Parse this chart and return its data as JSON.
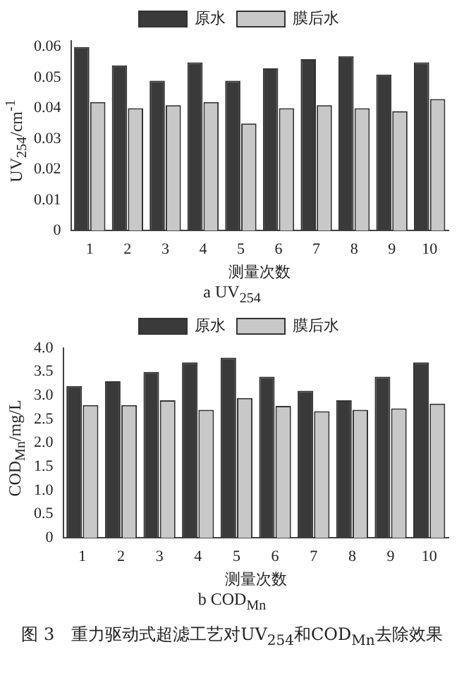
{
  "chart_data": [
    {
      "type": "bar",
      "title": "a UV$_{254}$",
      "xlabel": "测量次数",
      "ylabel": "UV$_{254}$/cm$^{-1}$",
      "categories": [
        "1",
        "2",
        "3",
        "4",
        "5",
        "6",
        "7",
        "8",
        "9",
        "10"
      ],
      "series": [
        {
          "name": "原水",
          "color": "#3a3a3a",
          "values": [
            0.06,
            0.054,
            0.049,
            0.055,
            0.049,
            0.053,
            0.056,
            0.057,
            0.051,
            0.055
          ]
        },
        {
          "name": "膜后水",
          "color": "#c8c8c8",
          "values": [
            0.042,
            0.04,
            0.041,
            0.042,
            0.035,
            0.04,
            0.041,
            0.04,
            0.039,
            0.043
          ]
        }
      ],
      "ylim": [
        0,
        0.062
      ],
      "yticks": [
        {
          "value": 0,
          "label": "0"
        },
        0.01,
        0.02,
        0.03,
        0.04,
        0.05,
        0.06
      ],
      "grid": false,
      "legend": "top"
    },
    {
      "type": "bar",
      "title": "b COD$_{Mn}$",
      "xlabel": "测量次数",
      "ylabel": "COD$_{Mn}$/mg/L",
      "categories": [
        "1",
        "2",
        "3",
        "4",
        "5",
        "6",
        "7",
        "8",
        "9",
        "10"
      ],
      "series": [
        {
          "name": "原水",
          "color": "#3a3a3a",
          "values": [
            3.2,
            3.3,
            3.5,
            3.7,
            3.8,
            3.4,
            3.1,
            2.9,
            3.4,
            3.7
          ]
        },
        {
          "name": "膜后水",
          "color": "#c8c8c8",
          "values": [
            2.8,
            2.8,
            2.9,
            2.7,
            2.95,
            2.78,
            2.67,
            2.7,
            2.73,
            2.83
          ]
        }
      ],
      "ylim": [
        0,
        4
      ],
      "yticks": [
        {
          "value": 0,
          "label": "0"
        },
        {
          "value": 0.5,
          "label": "0.5"
        },
        {
          "value": 1,
          "label": "1.0"
        },
        {
          "value": 1.5,
          "label": "1.5"
        },
        {
          "value": 2,
          "label": "2.0"
        },
        {
          "value": 2.5,
          "label": "2.5"
        },
        {
          "value": 3,
          "label": "3.0"
        },
        {
          "value": 3.5,
          "label": "3.5"
        },
        {
          "value": 4,
          "label": "4.0"
        }
      ],
      "grid": false,
      "legend": "top",
      "annotations": [
        "图 3　重力驱动式超滤工艺对UV$_{254}$和COD$_{Mn}$去除效果"
      ]
    }
  ]
}
